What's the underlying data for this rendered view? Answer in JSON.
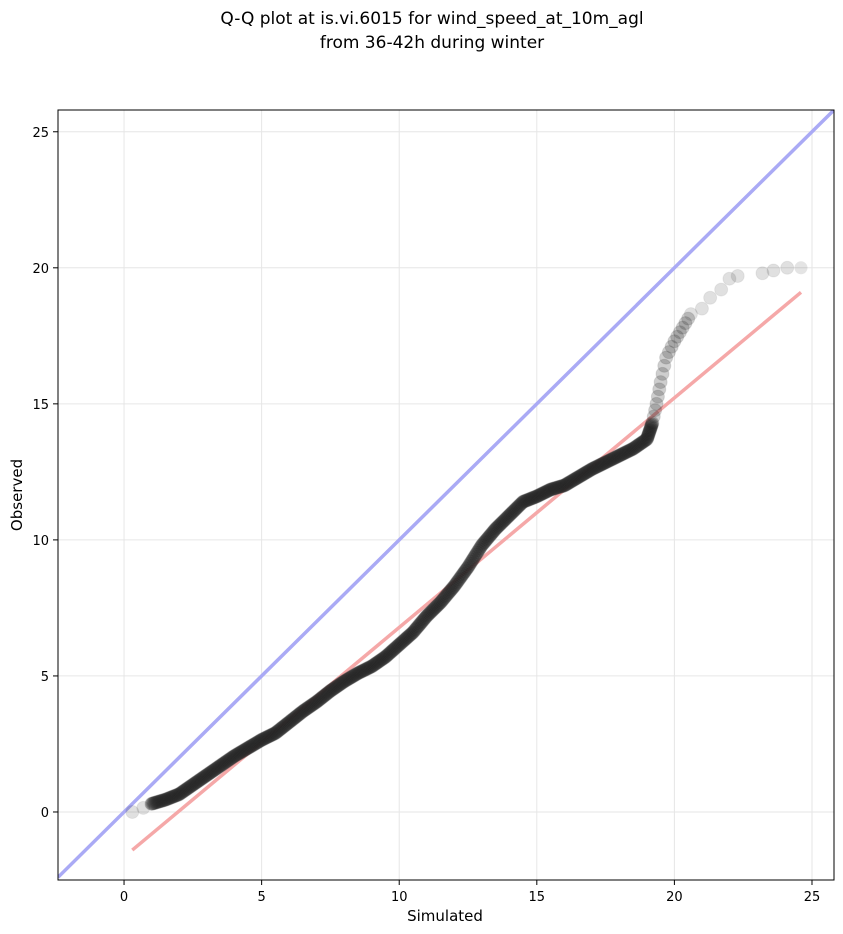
{
  "chart_data": {
    "type": "scatter",
    "title": "Q-Q plot at is.vi.6015 for wind_speed_at_10m_agl",
    "subtitle": "from 36-42h during winter",
    "xlabel": "Simulated",
    "ylabel": "Observed",
    "xlim": [
      -2.4,
      25.8
    ],
    "ylim": [
      -2.5,
      25.8
    ],
    "xticks": [
      0,
      5,
      10,
      15,
      20,
      25
    ],
    "yticks": [
      0,
      5,
      10,
      15,
      20,
      25
    ],
    "grid": true,
    "reference_line": {
      "from": [
        -2.4,
        -2.4
      ],
      "to": [
        25.8,
        25.8
      ],
      "color": "#aaaaf5"
    },
    "fit_line": {
      "from": [
        0.3,
        -1.4
      ],
      "to": [
        24.6,
        19.1
      ],
      "color": "#f5a8a8"
    },
    "quantile_curve": [
      [
        0.3,
        0.0
      ],
      [
        0.7,
        0.15
      ],
      [
        1.0,
        0.3
      ],
      [
        1.5,
        0.45
      ],
      [
        2.0,
        0.65
      ],
      [
        2.5,
        1.0
      ],
      [
        3.0,
        1.35
      ],
      [
        3.5,
        1.7
      ],
      [
        4.0,
        2.05
      ],
      [
        4.5,
        2.35
      ],
      [
        5.0,
        2.65
      ],
      [
        5.5,
        2.9
      ],
      [
        6.0,
        3.3
      ],
      [
        6.5,
        3.7
      ],
      [
        7.0,
        4.05
      ],
      [
        7.5,
        4.45
      ],
      [
        8.0,
        4.8
      ],
      [
        8.5,
        5.1
      ],
      [
        9.0,
        5.35
      ],
      [
        9.5,
        5.7
      ],
      [
        10.0,
        6.15
      ],
      [
        10.5,
        6.6
      ],
      [
        11.0,
        7.2
      ],
      [
        11.5,
        7.7
      ],
      [
        12.0,
        8.3
      ],
      [
        12.5,
        9.0
      ],
      [
        13.0,
        9.8
      ],
      [
        13.5,
        10.4
      ],
      [
        14.0,
        10.9
      ],
      [
        14.5,
        11.4
      ],
      [
        15.0,
        11.6
      ],
      [
        15.5,
        11.85
      ],
      [
        16.0,
        12.0
      ],
      [
        16.5,
        12.3
      ],
      [
        17.0,
        12.6
      ],
      [
        17.5,
        12.85
      ],
      [
        18.0,
        13.1
      ],
      [
        18.5,
        13.35
      ],
      [
        19.0,
        13.7
      ],
      [
        19.2,
        14.3
      ],
      [
        19.35,
        15.0
      ],
      [
        19.5,
        15.8
      ],
      [
        19.7,
        16.7
      ],
      [
        20.0,
        17.3
      ],
      [
        20.3,
        17.8
      ],
      [
        20.6,
        18.3
      ],
      [
        21.0,
        18.5
      ],
      [
        21.3,
        18.9
      ],
      [
        21.7,
        19.2
      ],
      [
        22.0,
        19.6
      ],
      [
        22.3,
        19.7
      ],
      [
        23.2,
        19.8
      ],
      [
        23.6,
        19.9
      ],
      [
        24.1,
        20.0
      ],
      [
        24.6,
        20.0
      ]
    ]
  }
}
